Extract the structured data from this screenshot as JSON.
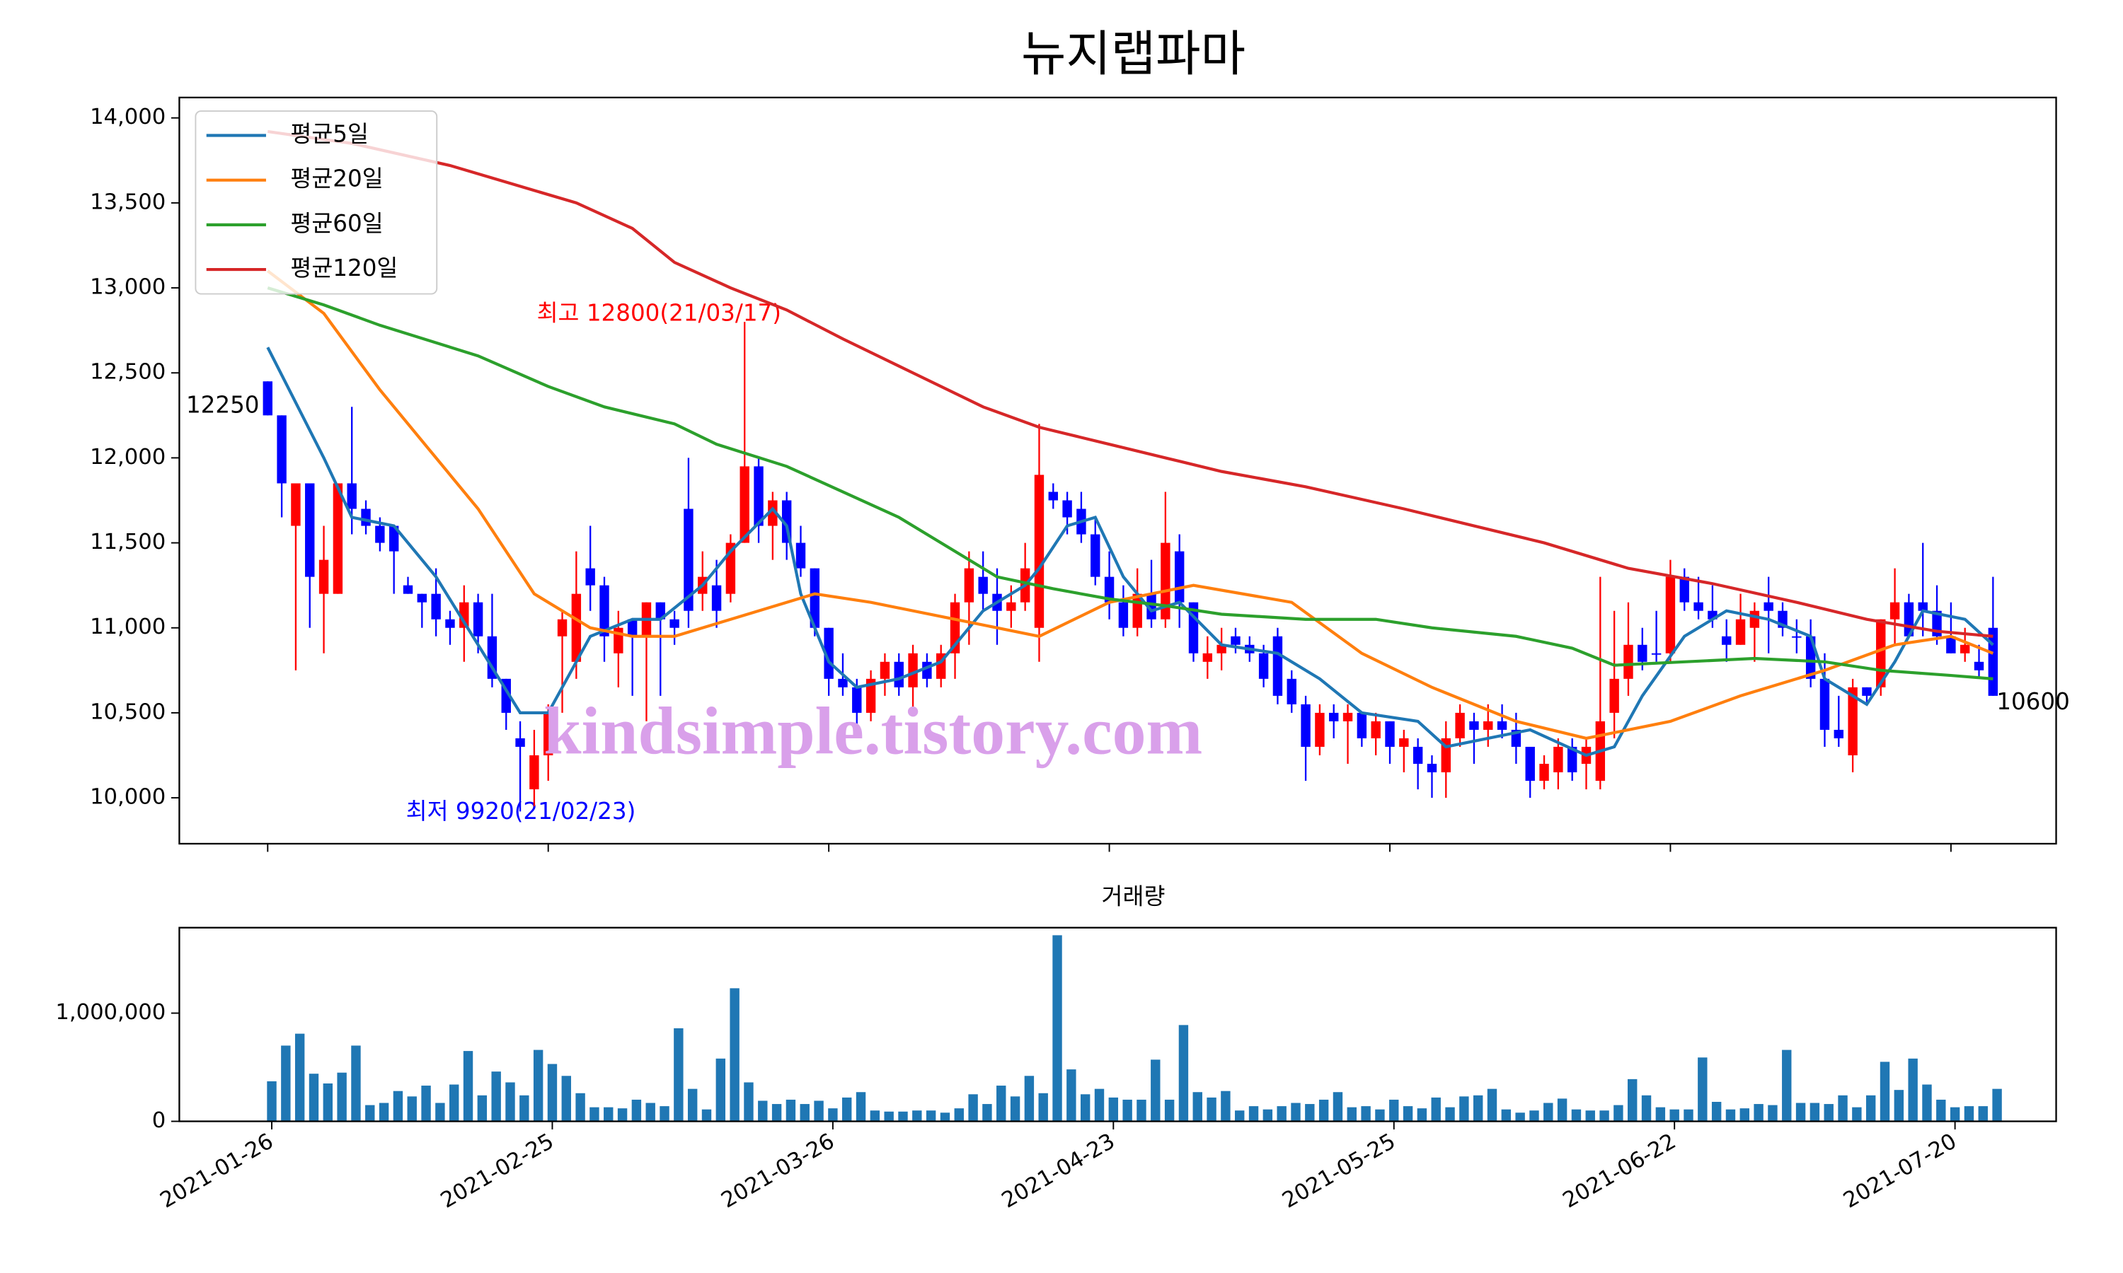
{
  "watermark": "kindsimple.tistory.com",
  "chart_data": [
    {
      "type": "candlestick",
      "title": "뉴지랩파마",
      "legend": "upper left",
      "up_color": "#ff0000",
      "down_color": "#0000ff",
      "xlim": [
        -6.3,
        127.5
      ],
      "ylim": [
        9730,
        14120
      ],
      "yticks": [
        {
          "value": 10000,
          "label": "10,000"
        },
        {
          "value": 10500,
          "label": "10,500"
        },
        {
          "value": 11000,
          "label": "11,000"
        },
        {
          "value": 11500,
          "label": "11,500"
        },
        {
          "value": 12000,
          "label": "12,000"
        },
        {
          "value": 12500,
          "label": "12,500"
        },
        {
          "value": 13000,
          "label": "13,000"
        },
        {
          "value": 13500,
          "label": "13,500"
        },
        {
          "value": 14000,
          "label": "14,000"
        }
      ],
      "annotations": [
        "최고 12800(21/03/17)",
        "최저 9920(21/02/23)",
        "12250",
        "10600"
      ],
      "open": [
        12450,
        12250,
        11600,
        11850,
        11200,
        11200,
        11850,
        11700,
        11600,
        11600,
        11250,
        11200,
        11200,
        11050,
        11000,
        11150,
        10950,
        10700,
        10350,
        10050,
        10250,
        10950,
        10800,
        11350,
        11250,
        10850,
        11050,
        10950,
        11150,
        11050,
        11700,
        11200,
        11250,
        11200,
        11500,
        11950,
        11600,
        11750,
        11500,
        11350,
        11000,
        10700,
        10650,
        10500,
        10700,
        10800,
        10650,
        10800,
        10700,
        10850,
        11150,
        11300,
        11200,
        11100,
        11150,
        11000,
        11800,
        11750,
        11700,
        11550,
        11300,
        11150,
        11000,
        11200,
        11050,
        11450,
        11150,
        10800,
        10850,
        10950,
        10900,
        10850,
        10950,
        10700,
        10550,
        10300,
        10500,
        10450,
        10500,
        10350,
        10450,
        10300,
        10300,
        10200,
        10150,
        10350,
        10450,
        10400,
        10450,
        10400,
        10300,
        10100,
        10150,
        10300,
        10200,
        10100,
        10500,
        10700,
        10900,
        10850,
        10850,
        11300,
        11150,
        11100,
        10950,
        10900,
        11000,
        11150,
        11100,
        10950,
        10950,
        10700,
        10400,
        10250,
        10650,
        10650,
        11050,
        11150,
        11150,
        11100,
        10950,
        10850,
        10800,
        11000
      ],
      "high": [
        12450,
        12250,
        11850,
        11850,
        11600,
        11850,
        12300,
        11750,
        11650,
        11600,
        11300,
        11200,
        11350,
        11100,
        11250,
        11200,
        11200,
        10700,
        10450,
        10400,
        10550,
        11100,
        11450,
        11600,
        11300,
        11100,
        11050,
        11150,
        11150,
        11100,
        12000,
        11450,
        11400,
        11550,
        12800,
        12000,
        11800,
        11800,
        11600,
        11350,
        11000,
        10850,
        10700,
        10750,
        10850,
        10850,
        10900,
        10850,
        10900,
        11200,
        11450,
        11450,
        11350,
        11250,
        11500,
        12200,
        11850,
        11800,
        11800,
        11650,
        11450,
        11250,
        11350,
        11400,
        11800,
        11550,
        11150,
        10950,
        11000,
        11000,
        10950,
        10900,
        11000,
        10750,
        10600,
        10550,
        10550,
        10550,
        10500,
        10500,
        10450,
        10400,
        10350,
        10250,
        10450,
        10550,
        10500,
        10550,
        10550,
        10500,
        10300,
        10250,
        10350,
        10350,
        10350,
        11300,
        11100,
        11150,
        11000,
        11100,
        11400,
        11350,
        11300,
        11250,
        11050,
        11200,
        11150,
        11300,
        11150,
        11050,
        11050,
        10850,
        10600,
        10700,
        10650,
        11050,
        11350,
        11200,
        11500,
        11250,
        11150,
        11000,
        10900,
        11300
      ],
      "low": [
        12250,
        11650,
        10750,
        11000,
        10850,
        11200,
        11550,
        11550,
        11450,
        11200,
        11200,
        11000,
        10950,
        10900,
        10800,
        10850,
        10650,
        10400,
        9920,
        9950,
        10100,
        10500,
        10700,
        11100,
        10800,
        10650,
        10600,
        10450,
        10600,
        10900,
        11000,
        11100,
        11000,
        11150,
        11500,
        11500,
        11400,
        11400,
        11300,
        10950,
        10600,
        10600,
        10400,
        10450,
        10600,
        10600,
        10500,
        10650,
        10650,
        10700,
        10900,
        11100,
        10900,
        11000,
        11100,
        10800,
        11700,
        11550,
        11500,
        11250,
        11050,
        10950,
        10950,
        11000,
        11000,
        11000,
        10800,
        10700,
        10750,
        10850,
        10800,
        10650,
        10550,
        10500,
        10100,
        10250,
        10350,
        10200,
        10300,
        10250,
        10200,
        10150,
        10050,
        10000,
        10000,
        10300,
        10200,
        10300,
        10350,
        10200,
        10000,
        10050,
        10050,
        10100,
        10050,
        10050,
        10350,
        10600,
        10750,
        10800,
        10800,
        11100,
        11050,
        11000,
        10800,
        10900,
        10800,
        10850,
        10950,
        10850,
        10650,
        10300,
        10300,
        10150,
        10550,
        10600,
        10900,
        10950,
        10950,
        10900,
        10850,
        10800,
        10700,
        10600
      ],
      "close": [
        12250,
        11850,
        11850,
        11300,
        11400,
        11850,
        11700,
        11600,
        11500,
        11450,
        11200,
        11150,
        11050,
        11000,
        11150,
        10950,
        10700,
        10500,
        10300,
        10250,
        10500,
        11050,
        11200,
        11250,
        10950,
        11000,
        10950,
        11150,
        11050,
        11000,
        11100,
        11300,
        11100,
        11500,
        11950,
        11600,
        11750,
        11500,
        11350,
        11000,
        10700,
        10650,
        10500,
        10700,
        10800,
        10650,
        10850,
        10700,
        10850,
        11150,
        11350,
        11200,
        11100,
        11150,
        11350,
        11900,
        11750,
        11650,
        11550,
        11300,
        11150,
        11000,
        11200,
        11050,
        11500,
        11150,
        10850,
        10850,
        10900,
        10900,
        10850,
        10700,
        10600,
        10550,
        10300,
        10500,
        10450,
        10500,
        10350,
        10450,
        10300,
        10350,
        10200,
        10150,
        10350,
        10500,
        10400,
        10450,
        10400,
        10300,
        10100,
        10200,
        10300,
        10150,
        10300,
        10450,
        10700,
        10900,
        10800,
        10850,
        11300,
        11150,
        11100,
        11050,
        10900,
        11050,
        11100,
        11100,
        11000,
        10950,
        10700,
        10400,
        10350,
        10650,
        10600,
        11050,
        11150,
        10950,
        11100,
        10950,
        10850,
        10900,
        10750,
        10600
      ],
      "series": [
        {
          "name": "평균5일",
          "color": "#1f77b4",
          "x": [
            0,
            4,
            6,
            9,
            12,
            15,
            18,
            20,
            23,
            26,
            28,
            31,
            33,
            36,
            37,
            38,
            40,
            42,
            45,
            48,
            51,
            54,
            55,
            57,
            59,
            61,
            63,
            65,
            68,
            72,
            75,
            78,
            82,
            84,
            87,
            90,
            94,
            96,
            98,
            101,
            104,
            107,
            110,
            111,
            114,
            116,
            118,
            121,
            123
          ],
          "values": [
            12650,
            12000,
            11650,
            11600,
            11300,
            10900,
            10500,
            10500,
            10950,
            11050,
            11050,
            11250,
            11450,
            11700,
            11600,
            11200,
            10800,
            10650,
            10700,
            10800,
            11100,
            11250,
            11350,
            11600,
            11650,
            11300,
            11100,
            11150,
            10900,
            10850,
            10700,
            10500,
            10450,
            10300,
            10350,
            10400,
            10250,
            10300,
            10600,
            10950,
            11100,
            11050,
            10950,
            10700,
            10550,
            10800,
            11100,
            11050,
            10900
          ]
        },
        {
          "name": "평균20일",
          "color": "#ff7f0e",
          "x": [
            0,
            4,
            8,
            12,
            15,
            19,
            23,
            26,
            29,
            33,
            39,
            43,
            49,
            55,
            60,
            66,
            73,
            78,
            83,
            89,
            94,
            100,
            105,
            111,
            116,
            120,
            123
          ],
          "values": [
            13100,
            12850,
            12400,
            12000,
            11700,
            11200,
            11000,
            10950,
            10950,
            11050,
            11200,
            11150,
            11050,
            10950,
            11150,
            11250,
            11150,
            10850,
            10650,
            10450,
            10350,
            10450,
            10600,
            10750,
            10900,
            10950,
            10850
          ]
        },
        {
          "name": "평균60일",
          "color": "#2ca02c",
          "x": [
            0,
            4,
            8,
            15,
            20,
            24,
            29,
            32,
            37,
            41,
            45,
            48,
            52,
            56,
            60,
            64,
            68,
            74,
            79,
            83,
            89,
            93,
            96,
            101,
            106,
            111,
            115,
            120,
            123
          ],
          "values": [
            13000,
            12900,
            12780,
            12600,
            12420,
            12300,
            12200,
            12080,
            11950,
            11800,
            11650,
            11500,
            11300,
            11230,
            11170,
            11130,
            11080,
            11050,
            11050,
            11000,
            10950,
            10880,
            10780,
            10800,
            10820,
            10800,
            10750,
            10720,
            10700
          ]
        },
        {
          "name": "평균120일",
          "color": "#d62728",
          "x": [
            0,
            6,
            13,
            22,
            26,
            29,
            33,
            37,
            41,
            46,
            51,
            55,
            60,
            65,
            68,
            74,
            81,
            86,
            91,
            97,
            103,
            109,
            114,
            119,
            123
          ],
          "values": [
            13920,
            13850,
            13720,
            13500,
            13350,
            13150,
            13000,
            12870,
            12700,
            12500,
            12300,
            12180,
            12080,
            11980,
            11920,
            11830,
            11700,
            11600,
            11500,
            11350,
            11260,
            11150,
            11050,
            10980,
            10950
          ]
        }
      ]
    },
    {
      "type": "bar",
      "title": "거래량",
      "color": "#1f77b4",
      "xlim": [
        -6.3,
        127.5
      ],
      "ylim": [
        0,
        1790000
      ],
      "yticks": [
        0,
        {
          "value": 1000000,
          "label": "1,000,000"
        }
      ],
      "categories": [
        "2021-01-26",
        null,
        null,
        null,
        null,
        null,
        null,
        null,
        null,
        null,
        null,
        null,
        null,
        null,
        null,
        null,
        null,
        null,
        null,
        null,
        "2021-02-25",
        null,
        null,
        null,
        null,
        null,
        null,
        null,
        null,
        null,
        null,
        null,
        null,
        null,
        null,
        null,
        null,
        null,
        null,
        null,
        "2021-03-26",
        null,
        null,
        null,
        null,
        null,
        null,
        null,
        null,
        null,
        null,
        null,
        null,
        null,
        null,
        null,
        null,
        null,
        null,
        null,
        "2021-04-23",
        null,
        null,
        null,
        null,
        null,
        null,
        null,
        null,
        null,
        null,
        null,
        null,
        null,
        null,
        null,
        null,
        null,
        null,
        null,
        "2021-05-25",
        null,
        null,
        null,
        null,
        null,
        null,
        null,
        null,
        null,
        null,
        null,
        null,
        null,
        null,
        null,
        null,
        null,
        null,
        null,
        "2021-06-22",
        null,
        null,
        null,
        null,
        null,
        null,
        null,
        null,
        null,
        null,
        null,
        null,
        null,
        null,
        null,
        null,
        null,
        null,
        null,
        "2021-07-20",
        null,
        null,
        null
      ],
      "values": [
        370000,
        700000,
        810000,
        440000,
        350000,
        450000,
        700000,
        150000,
        170000,
        280000,
        230000,
        330000,
        170000,
        340000,
        650000,
        240000,
        460000,
        360000,
        240000,
        660000,
        530000,
        420000,
        260000,
        130000,
        130000,
        120000,
        200000,
        170000,
        140000,
        860000,
        300000,
        110000,
        580000,
        1230000,
        360000,
        190000,
        160000,
        200000,
        160000,
        190000,
        120000,
        220000,
        270000,
        100000,
        90000,
        90000,
        100000,
        100000,
        80000,
        120000,
        250000,
        160000,
        330000,
        230000,
        420000,
        260000,
        1720000,
        480000,
        250000,
        300000,
        220000,
        200000,
        200000,
        570000,
        200000,
        890000,
        270000,
        220000,
        280000,
        100000,
        140000,
        110000,
        140000,
        170000,
        160000,
        200000,
        270000,
        130000,
        140000,
        110000,
        200000,
        140000,
        120000,
        220000,
        130000,
        230000,
        240000,
        300000,
        110000,
        80000,
        100000,
        170000,
        210000,
        110000,
        100000,
        100000,
        150000,
        390000,
        240000,
        130000,
        110000,
        110000,
        590000,
        180000,
        110000,
        120000,
        160000,
        150000,
        660000,
        170000,
        170000,
        160000,
        240000,
        130000,
        240000,
        550000,
        290000,
        580000,
        340000,
        200000,
        130000,
        140000,
        140000,
        300000
      ]
    }
  ]
}
